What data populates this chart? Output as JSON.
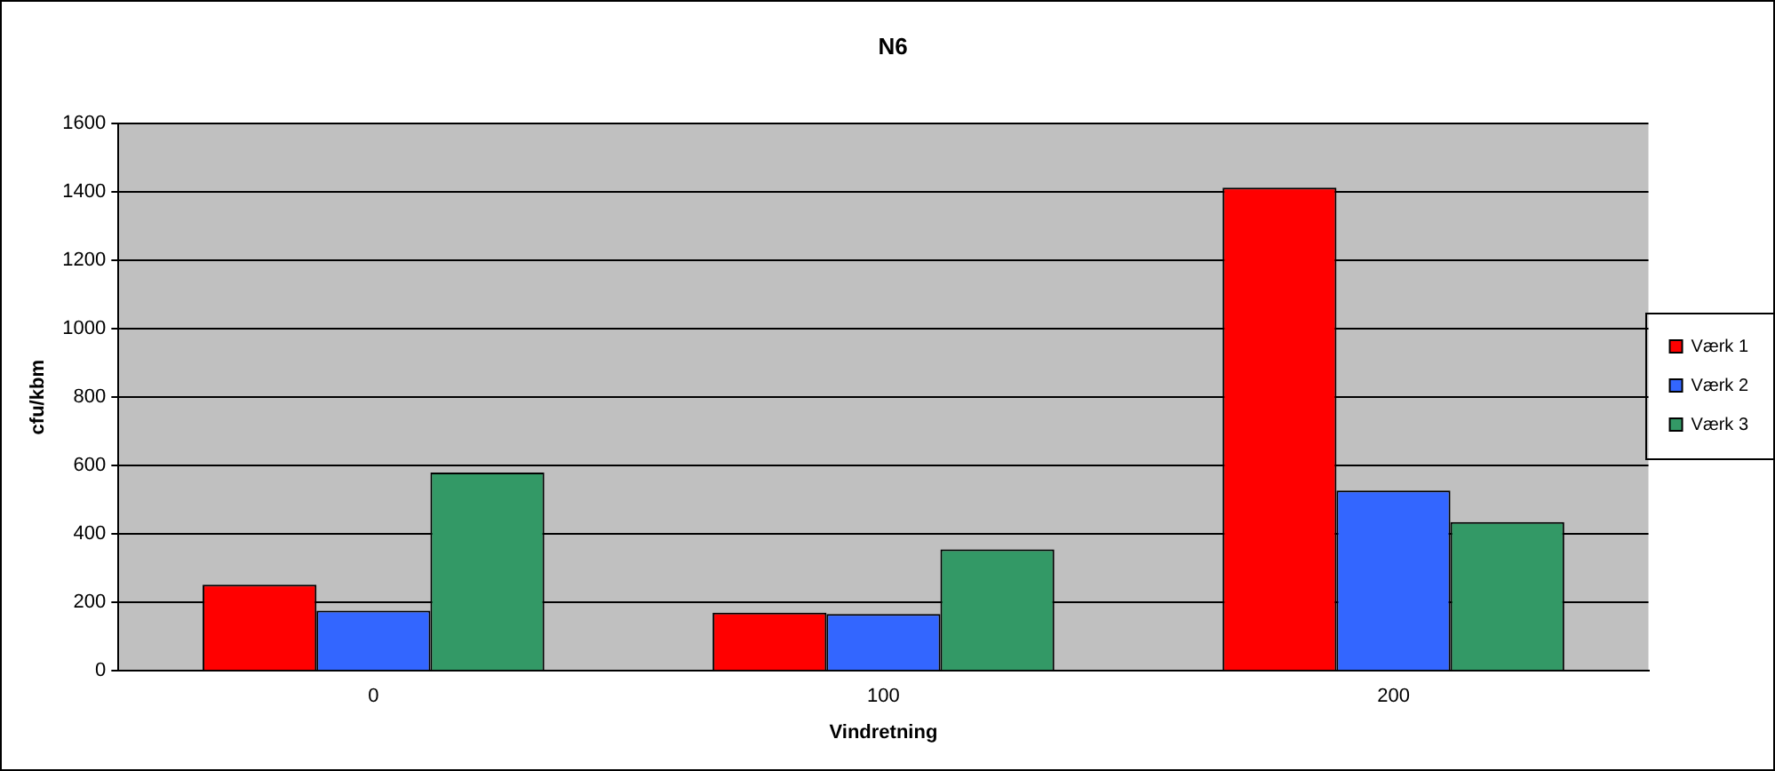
{
  "chart_data": {
    "type": "bar",
    "title": "N6",
    "xlabel": "Vindretning",
    "ylabel": "cfu/kbm",
    "categories": [
      "0",
      "100",
      "200"
    ],
    "series": [
      {
        "name": "Værk 1",
        "color": "#ff0000",
        "values": [
          252,
          170,
          1413
        ]
      },
      {
        "name": "Værk 2",
        "color": "#3366ff",
        "values": [
          176,
          166,
          527
        ]
      },
      {
        "name": "Værk 3",
        "color": "#339966",
        "values": [
          580,
          355,
          435
        ]
      }
    ],
    "ylim": [
      0,
      1600
    ],
    "yticks": [
      0,
      200,
      400,
      600,
      800,
      1000,
      1200,
      1400,
      1600
    ],
    "grid": "y",
    "legend": "right"
  }
}
